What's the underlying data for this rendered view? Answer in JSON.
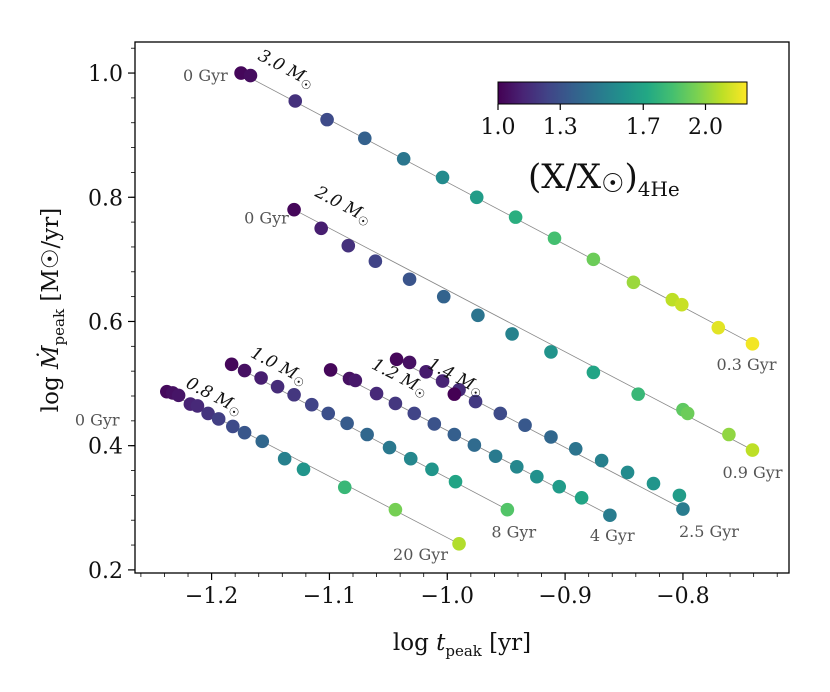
{
  "chart_data": {
    "type": "scatter",
    "xlabel": "log  t_peak [yr]",
    "ylabel": "log  Ṁ_peak [M☉/yr]",
    "xlim": [
      -1.265,
      -0.71
    ],
    "ylim": [
      0.195,
      1.05
    ],
    "xticks": [
      -1.2,
      -1.1,
      -1.0,
      -0.9,
      -0.8
    ],
    "xtick_labels": [
      "−1.2",
      "−1.1",
      "−1.0",
      "−0.9",
      "−0.8"
    ],
    "yticks": [
      0.2,
      0.4,
      0.6,
      0.8,
      1.0
    ],
    "ytick_labels": [
      "0.2",
      "0.4",
      "0.6",
      "0.8",
      "1.0"
    ],
    "colorbar": {
      "colormap": "viridis",
      "range": [
        1.0,
        2.2
      ],
      "ticks": [
        1.0,
        1.3,
        1.7,
        2.0
      ],
      "tick_labels": [
        "1.0",
        "1.3",
        "1.7",
        "2.0"
      ],
      "label": "(X/X☉)⁴He",
      "label_main": "(X/X",
      "label_sun": "☉",
      "label_close": ")",
      "label_sub": "4He"
    },
    "series": [
      {
        "name": "0.8 M☉",
        "label_main": "0.8 M",
        "label_sun": "☉",
        "points": [
          [
            -1.238,
            0.487,
            1.03
          ],
          [
            -1.233,
            0.485,
            1.05
          ],
          [
            -1.228,
            0.481,
            1.07
          ],
          [
            -1.218,
            0.467,
            1.12
          ],
          [
            -1.212,
            0.464,
            1.14
          ],
          [
            -1.203,
            0.452,
            1.18
          ],
          [
            -1.194,
            0.443,
            1.22
          ],
          [
            -1.182,
            0.431,
            1.27
          ],
          [
            -1.172,
            0.421,
            1.32
          ],
          [
            -1.157,
            0.407,
            1.4
          ],
          [
            -1.138,
            0.379,
            1.52
          ],
          [
            -1.122,
            0.362,
            1.62
          ],
          [
            -1.087,
            0.333,
            1.8
          ],
          [
            -1.044,
            0.297,
            1.95
          ],
          [
            -0.99,
            0.242,
            2.06
          ]
        ],
        "start_label": "0 Gyr",
        "end_label": "20 Gyr"
      },
      {
        "name": "1.0 M☉",
        "label_main": "1.0 M",
        "label_sun": "☉",
        "points": [
          [
            -1.183,
            0.531,
            1.02
          ],
          [
            -1.172,
            0.521,
            1.05
          ],
          [
            -1.158,
            0.509,
            1.1
          ],
          [
            -1.144,
            0.495,
            1.15
          ],
          [
            -1.13,
            0.482,
            1.19
          ],
          [
            -1.115,
            0.466,
            1.24
          ],
          [
            -1.101,
            0.452,
            1.29
          ],
          [
            -1.085,
            0.436,
            1.34
          ],
          [
            -1.068,
            0.418,
            1.4
          ],
          [
            -1.049,
            0.397,
            1.48
          ],
          [
            -1.031,
            0.379,
            1.55
          ],
          [
            -1.013,
            0.362,
            1.62
          ],
          [
            -0.993,
            0.342,
            1.7
          ],
          [
            -0.949,
            0.297,
            1.87
          ]
        ],
        "end_label": "8 Gyr"
      },
      {
        "name": "1.2 M☉",
        "label_main": "1.2 M",
        "label_sun": "☉",
        "points": [
          [
            -1.099,
            0.522,
            1.02
          ],
          [
            -1.083,
            0.508,
            1.05
          ],
          [
            -1.078,
            0.505,
            1.08
          ],
          [
            -1.06,
            0.484,
            1.14
          ],
          [
            -1.044,
            0.468,
            1.19
          ],
          [
            -1.028,
            0.452,
            1.24
          ],
          [
            -1.011,
            0.435,
            1.3
          ],
          [
            -0.994,
            0.418,
            1.36
          ],
          [
            -0.977,
            0.401,
            1.42
          ],
          [
            -0.959,
            0.383,
            1.49
          ],
          [
            -0.941,
            0.366,
            1.55
          ],
          [
            -0.924,
            0.35,
            1.6
          ],
          [
            -0.905,
            0.334,
            1.65
          ],
          [
            -0.886,
            0.316,
            1.7
          ],
          [
            -0.862,
            0.288,
            1.5
          ]
        ],
        "end_label": "4 Gyr"
      },
      {
        "name": "1.4 M☉",
        "label_main": "1.4 M",
        "label_sun": "☉",
        "points": [
          [
            -1.043,
            0.539,
            1.02
          ],
          [
            -1.032,
            0.534,
            1.05
          ],
          [
            -1.018,
            0.519,
            1.09
          ],
          [
            -1.004,
            0.504,
            1.12
          ],
          [
            -0.99,
            0.49,
            1.15
          ],
          [
            -0.994,
            0.483,
            1.0
          ],
          [
            -0.976,
            0.471,
            1.2
          ],
          [
            -0.955,
            0.452,
            1.27
          ],
          [
            -0.934,
            0.433,
            1.33
          ],
          [
            -0.912,
            0.414,
            1.4
          ],
          [
            -0.891,
            0.395,
            1.46
          ],
          [
            -0.869,
            0.376,
            1.52
          ],
          [
            -0.847,
            0.357,
            1.57
          ],
          [
            -0.825,
            0.339,
            1.62
          ],
          [
            -0.803,
            0.32,
            1.66
          ],
          [
            -0.8,
            0.298,
            1.5
          ]
        ],
        "end_label": "2.5 Gyr"
      },
      {
        "name": "2.0 M☉",
        "label_main": "2.0 M",
        "label_sun": "☉",
        "points": [
          [
            -1.13,
            0.78,
            1.02
          ],
          [
            -1.107,
            0.75,
            1.1
          ],
          [
            -1.084,
            0.722,
            1.17
          ],
          [
            -1.061,
            0.697,
            1.24
          ],
          [
            -1.032,
            0.668,
            1.31
          ],
          [
            -1.003,
            0.64,
            1.38
          ],
          [
            -0.974,
            0.61,
            1.46
          ],
          [
            -0.945,
            0.58,
            1.53
          ],
          [
            -0.912,
            0.551,
            1.61
          ],
          [
            -0.876,
            0.518,
            1.7
          ],
          [
            -0.838,
            0.483,
            1.8
          ],
          [
            -0.8,
            0.458,
            1.9
          ],
          [
            -0.796,
            0.452,
            1.93
          ],
          [
            -0.761,
            0.418,
            2.0
          ],
          [
            -0.741,
            0.393,
            2.08
          ]
        ],
        "start_label": "0 Gyr",
        "end_label": "0.9 Gyr"
      },
      {
        "name": "3.0 M☉",
        "label_main": "3.0 M",
        "label_sun": "☉",
        "points": [
          [
            -1.175,
            1.0,
            1.02
          ],
          [
            -1.167,
            0.996,
            1.04
          ],
          [
            -1.129,
            0.955,
            1.17
          ],
          [
            -1.102,
            0.925,
            1.27
          ],
          [
            -1.07,
            0.895,
            1.37
          ],
          [
            -1.037,
            0.862,
            1.47
          ],
          [
            -1.004,
            0.832,
            1.57
          ],
          [
            -0.975,
            0.8,
            1.66
          ],
          [
            -0.942,
            0.768,
            1.75
          ],
          [
            -0.909,
            0.734,
            1.84
          ],
          [
            -0.876,
            0.7,
            1.93
          ],
          [
            -0.842,
            0.663,
            2.02
          ],
          [
            -0.809,
            0.635,
            2.08
          ],
          [
            -0.801,
            0.627,
            2.1
          ],
          [
            -0.77,
            0.59,
            2.15
          ],
          [
            -0.741,
            0.564,
            2.18
          ]
        ],
        "start_label": "0 Gyr",
        "end_label": "0.3 Gyr"
      }
    ]
  }
}
